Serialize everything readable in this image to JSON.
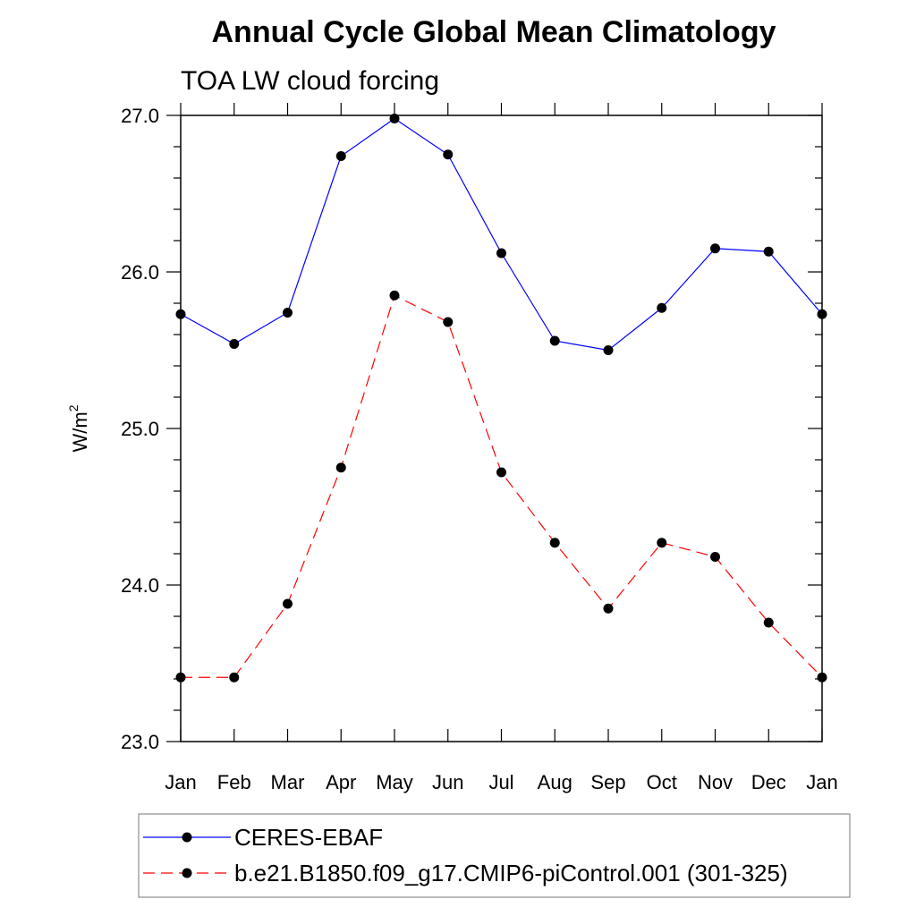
{
  "chart_data": {
    "type": "line",
    "title": "Annual Cycle Global Mean Climatology",
    "subtitle": "TOA LW cloud forcing",
    "ylabel": "W/m",
    "ylabel_superscript": "2",
    "xlabel": "",
    "categories": [
      "Jan",
      "Feb",
      "Mar",
      "Apr",
      "May",
      "Jun",
      "Jul",
      "Aug",
      "Sep",
      "Oct",
      "Nov",
      "Dec",
      "Jan"
    ],
    "ylim": [
      23.0,
      27.0
    ],
    "yticks": [
      "23.0",
      "24.0",
      "25.0",
      "26.0",
      "27.0"
    ],
    "grid": false,
    "legend_position": "bottom",
    "series": [
      {
        "name": "CERES-EBAF",
        "color": "#0000ff",
        "dash": "solid",
        "values": [
          25.73,
          25.54,
          25.74,
          26.74,
          26.98,
          26.75,
          26.12,
          25.56,
          25.5,
          25.77,
          26.15,
          26.13,
          25.73
        ]
      },
      {
        "name": "b.e21.B1850.f09_g17.CMIP6-piControl.001 (301-325)",
        "color": "#ff0000",
        "dash": "dashed",
        "values": [
          23.41,
          23.41,
          23.88,
          24.75,
          25.85,
          25.68,
          24.72,
          24.27,
          23.85,
          24.27,
          24.18,
          23.76,
          23.41
        ]
      }
    ]
  }
}
